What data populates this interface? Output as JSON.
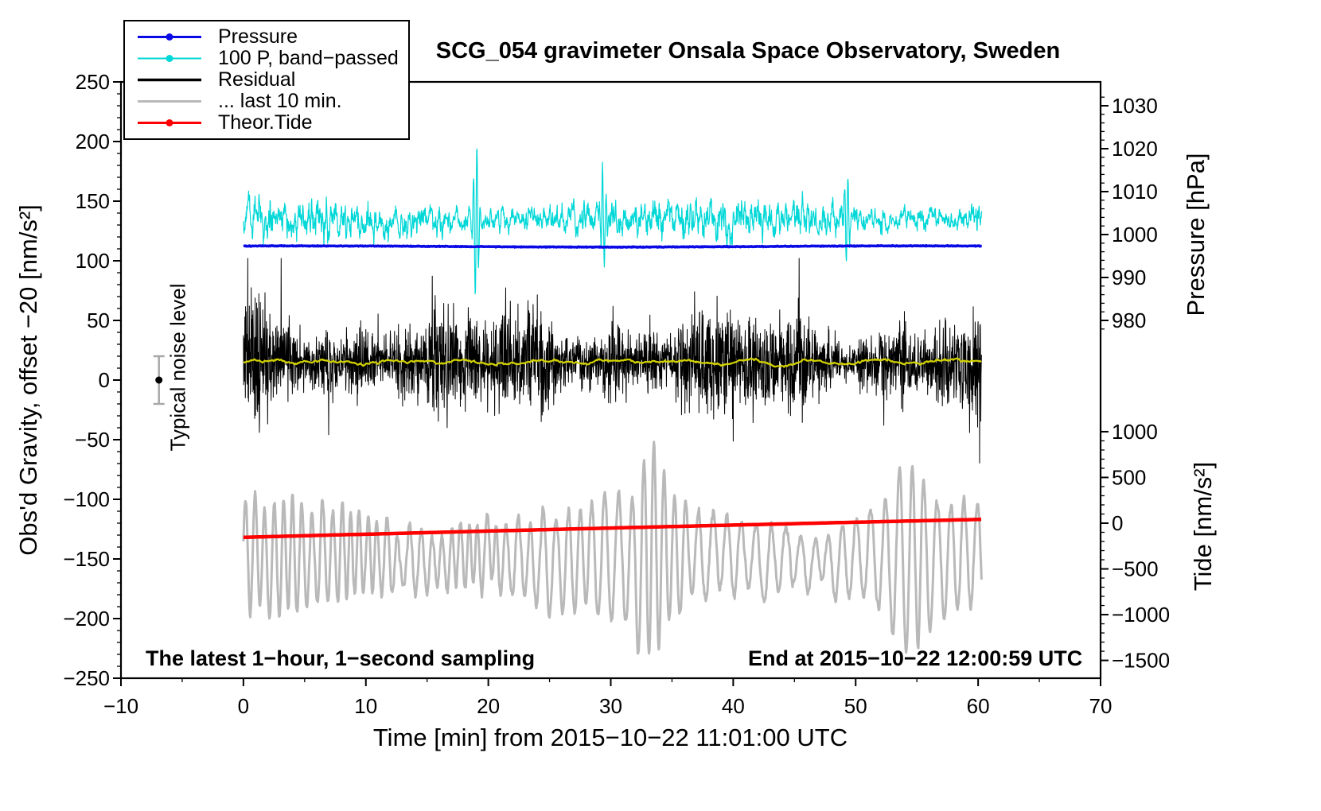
{
  "chart_data": {
    "type": "line",
    "title": "SCG_054 gravimeter Onsala Space Observatory, Sweden",
    "xlabel": "Time [min] from 2015−10−22 11:01:00 UTC",
    "ylabel_left": "Obs'd Gravity, offset −20 [nm/s²]",
    "ylabel_pressure": "Pressure [hPa]",
    "ylabel_tide": "Tide [nm/s²]",
    "annotations": {
      "noise": "Typical noise level",
      "sampling": "The latest 1−hour, 1−second sampling",
      "end_time": "End at 2015−10−22 12:00:59 UTC"
    },
    "x_range": [
      -10,
      70
    ],
    "x_ticks": [
      -10,
      0,
      10,
      20,
      30,
      40,
      50,
      60,
      70
    ],
    "x_minor_step": 5,
    "y_left_range": [
      -250,
      250
    ],
    "y_left_ticks": [
      250,
      200,
      150,
      100,
      50,
      0,
      -50,
      -100,
      -150,
      -200,
      -250
    ],
    "y_left_minor_step": 10,
    "pressure_axis": {
      "ticks": [
        1030,
        1020,
        1010,
        1000,
        990,
        980
      ],
      "minor_step": 2,
      "minor_range": [
        978,
        1032
      ],
      "anchor_value": 1000,
      "anchor_left_units": 122,
      "left_units_per_hPa": 3.6
    },
    "tide_axis": {
      "ticks": [
        1000,
        500,
        0,
        -500,
        -1000,
        -1500
      ],
      "minor_step": 100,
      "minor_range": [
        -1500,
        1000
      ],
      "anchor_value": 0,
      "anchor_left_units": -120,
      "left_units_per_unit": 0.0767
    },
    "time_span_min": [
      0,
      60.3
    ],
    "grid": false,
    "legend_position": "top-left",
    "legend": [
      {
        "key": "pressure",
        "label": "Pressure",
        "color": "#0a0ae6",
        "dot_r": 4.5,
        "line_w": 3
      },
      {
        "key": "band",
        "label": "100 P, band−passed",
        "color": "#00d7d7",
        "dot_r": 4.5,
        "line_w": 2
      },
      {
        "key": "residual",
        "label": "Residual",
        "color": "#000000",
        "dot_r": 0,
        "line_w": 3.5
      },
      {
        "key": "last10",
        "label": "... last 10 min.",
        "color": "#b9b9b9",
        "dot_r": 0,
        "line_w": 3
      },
      {
        "key": "tide",
        "label": "Theor.Tide",
        "color": "#ff0000",
        "dot_r": 4.5,
        "line_w": 3
      }
    ],
    "series": [
      {
        "key": "pressure",
        "name": "Pressure",
        "axis": "pressure",
        "color": "#0a0ae6",
        "mean_hPa": 997.3,
        "variation_hPa": 0.3,
        "mean_left_units": 112,
        "description": "nearly constant barometric pressure over the hour"
      },
      {
        "key": "band",
        "name": "100 P, band−passed",
        "axis": "left",
        "color": "#00d7d7",
        "mean": 135,
        "typical_amplitude": 12,
        "max": 190,
        "min": 58,
        "spikes": [
          {
            "t": 19.0,
            "amp": 65
          },
          {
            "t": 29.4,
            "amp": -38
          },
          {
            "t": 49.3,
            "amp": 38
          }
        ]
      },
      {
        "key": "residual",
        "name": "Residual",
        "axis": "left",
        "color": "#000000",
        "mean": 15,
        "typical_amplitude": 40,
        "max": 100,
        "min": -75
      },
      {
        "key": "smooth",
        "name": "Residual smoothed",
        "axis": "left",
        "color": "#d2d200",
        "mean": 15,
        "typical_amplitude": 3,
        "bump_at_min": 44
      },
      {
        "key": "last10",
        "name": "... last 10 min.",
        "axis": "left",
        "color": "#b9b9b9",
        "mean": -150,
        "typical_amplitude": 45,
        "quasi_period_min": 0.9,
        "max": -85,
        "min": -235,
        "surges_at_min": [
          33.3,
          54.2
        ]
      },
      {
        "key": "tide",
        "name": "Theor.Tide",
        "axis": "tide",
        "color": "#ff0000",
        "start_value": -155,
        "end_value": 40,
        "unit": "nm/s²",
        "description": "smooth theoretical tide rising slowly through the hour"
      }
    ],
    "noise_annotation": {
      "t_min": -6.9,
      "value": 0,
      "error": 20
    }
  }
}
